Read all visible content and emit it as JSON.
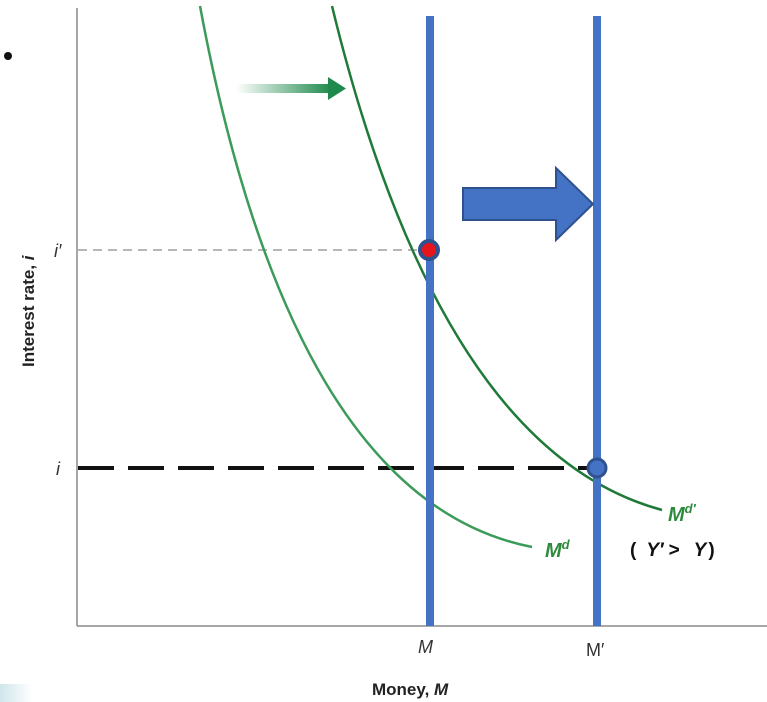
{
  "chart_data": {
    "type": "line",
    "xlabel_text": "Money, ",
    "xlabel_var": "M",
    "ylabel_text": "Interest rate, ",
    "ylabel_var": "i",
    "x_ticks": [
      "M",
      "M′"
    ],
    "y_ticks": [
      "i′",
      "i"
    ],
    "series": [
      {
        "name": "Md",
        "label_base": "M",
        "label_sup": "d",
        "color": "#3c9a5a"
      },
      {
        "name": "Md′",
        "label_base": "M",
        "label_sup": "d′",
        "color": "#1f7a38"
      }
    ],
    "supply_lines": [
      {
        "label": "M",
        "color": "#4472c4"
      },
      {
        "label": "M′",
        "color": "#4472c4"
      }
    ],
    "annotation": {
      "open": "(",
      "y1": "Y′",
      "gt": ">",
      "y2": "Y",
      "close": ")"
    },
    "equilibria": [
      {
        "x": "M",
        "y": "i′",
        "color": "#e8141c"
      },
      {
        "x": "M′",
        "y": "i",
        "color": "#4472c4"
      }
    ],
    "colors": {
      "demand_shift_arrow": "#1f8a4c",
      "supply_shift_arrow": "#4472c4",
      "axis": "#8a8a8a"
    }
  }
}
